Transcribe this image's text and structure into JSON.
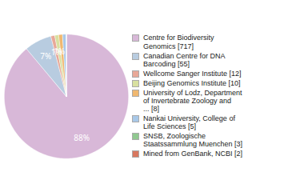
{
  "chart_data": {
    "type": "pie",
    "categories": [
      "Centre for Biodiversity\nGenomics [717]",
      "Canadian Centre for DNA\nBarcoding [55]",
      "Wellcome Sanger Institute [12]",
      "Beijing Genomics Institute [10]",
      "University of Lodz, Department\nof Invertebrate Zoology and\n... [8]",
      "Nankai University, College of\nLife Sciences [5]",
      "SNSB, Zoologische\nStaatssammlung Muenchen [3]",
      "Mined from GenBank, NCBI [2]"
    ],
    "values": [
      88,
      7,
      1,
      1,
      1,
      1,
      0,
      0
    ],
    "value_labels": [
      "88%",
      "7%",
      "1%",
      "1%",
      null,
      null,
      null,
      null
    ],
    "colors": [
      "#d8b8d8",
      "#b8cce0",
      "#e8a898",
      "#d8e0a0",
      "#f0b870",
      "#a8c8e8",
      "#90c890",
      "#d87860"
    ],
    "data_labels": true,
    "legend": "right"
  }
}
